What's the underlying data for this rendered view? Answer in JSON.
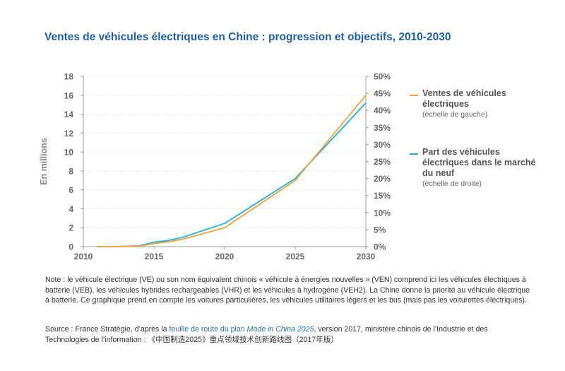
{
  "title": "Ventes de véhicules électriques en Chine : progression et objectifs, 2010-2030",
  "colors": {
    "sales": "#f4a233",
    "share": "#23aee3",
    "title": "#1f5fa8",
    "axis": "#999999"
  },
  "chart_data": {
    "type": "line",
    "ylabel": "En millions",
    "x_ticks": [
      "2010",
      "2015",
      "2020",
      "2025",
      "2030"
    ],
    "y_left_ticks": [
      "0",
      "2",
      "4",
      "6",
      "8",
      "10",
      "12",
      "14",
      "16",
      "18"
    ],
    "y_right_ticks": [
      "0%",
      "5%",
      "10%",
      "15%",
      "20%",
      "25%",
      "30%",
      "35%",
      "40%",
      "45%",
      "50%"
    ],
    "xlim": [
      2010,
      2030
    ],
    "ylim_left": [
      0,
      18
    ],
    "ylim_right": [
      0,
      50
    ],
    "series": [
      {
        "name": "Ventes de véhicules électriques",
        "sub": "(échelle de gauche)",
        "axis": "left",
        "points": [
          [
            2011,
            0.01
          ],
          [
            2012,
            0.01
          ],
          [
            2013,
            0.02
          ],
          [
            2014,
            0.07
          ],
          [
            2015,
            0.33
          ],
          [
            2016,
            0.51
          ],
          [
            2017,
            0.78
          ],
          [
            2020,
            2.0
          ],
          [
            2025,
            7.0
          ],
          [
            2030,
            16.0
          ]
        ]
      },
      {
        "name": "Part des véhicules électriques dans le marché du neuf",
        "sub": "(échelle de droite)",
        "axis": "right",
        "points": [
          [
            2011,
            0.0
          ],
          [
            2012,
            0.0
          ],
          [
            2013,
            0.1
          ],
          [
            2014,
            0.3
          ],
          [
            2015,
            1.3
          ],
          [
            2016,
            1.8
          ],
          [
            2017,
            2.7
          ],
          [
            2020,
            6.8
          ],
          [
            2025,
            20.0
          ],
          [
            2030,
            42.2
          ]
        ]
      }
    ]
  },
  "note": "Note : le véhicule électrique (VE) ou son nom équivalent chinois « véhicule à énergies nouvelles » (VEN) comprend ici les véhicules électriques à batterie (VEB), les véhicules hybrides rechargeables (VHR) et les véhicules à hydrogène (VEH2). La Chine donne la priorité au véhicule électrique à batterie. Ce graphique prend en compte les voitures particulières, les véhicules utilitaires légers et les bus (mais pas les voiturettes électriques).",
  "source": {
    "prefix": "Source : France Stratégie, d’après la ",
    "link_text": "feuille de route du plan ",
    "link_italic": "Made in China 2025",
    "suffix": ", version 2017, ministère chinois de l’Industrie et des Technologies de l’information : 《中国制造2025》重点领域技术创新路线图（2017年版）"
  }
}
